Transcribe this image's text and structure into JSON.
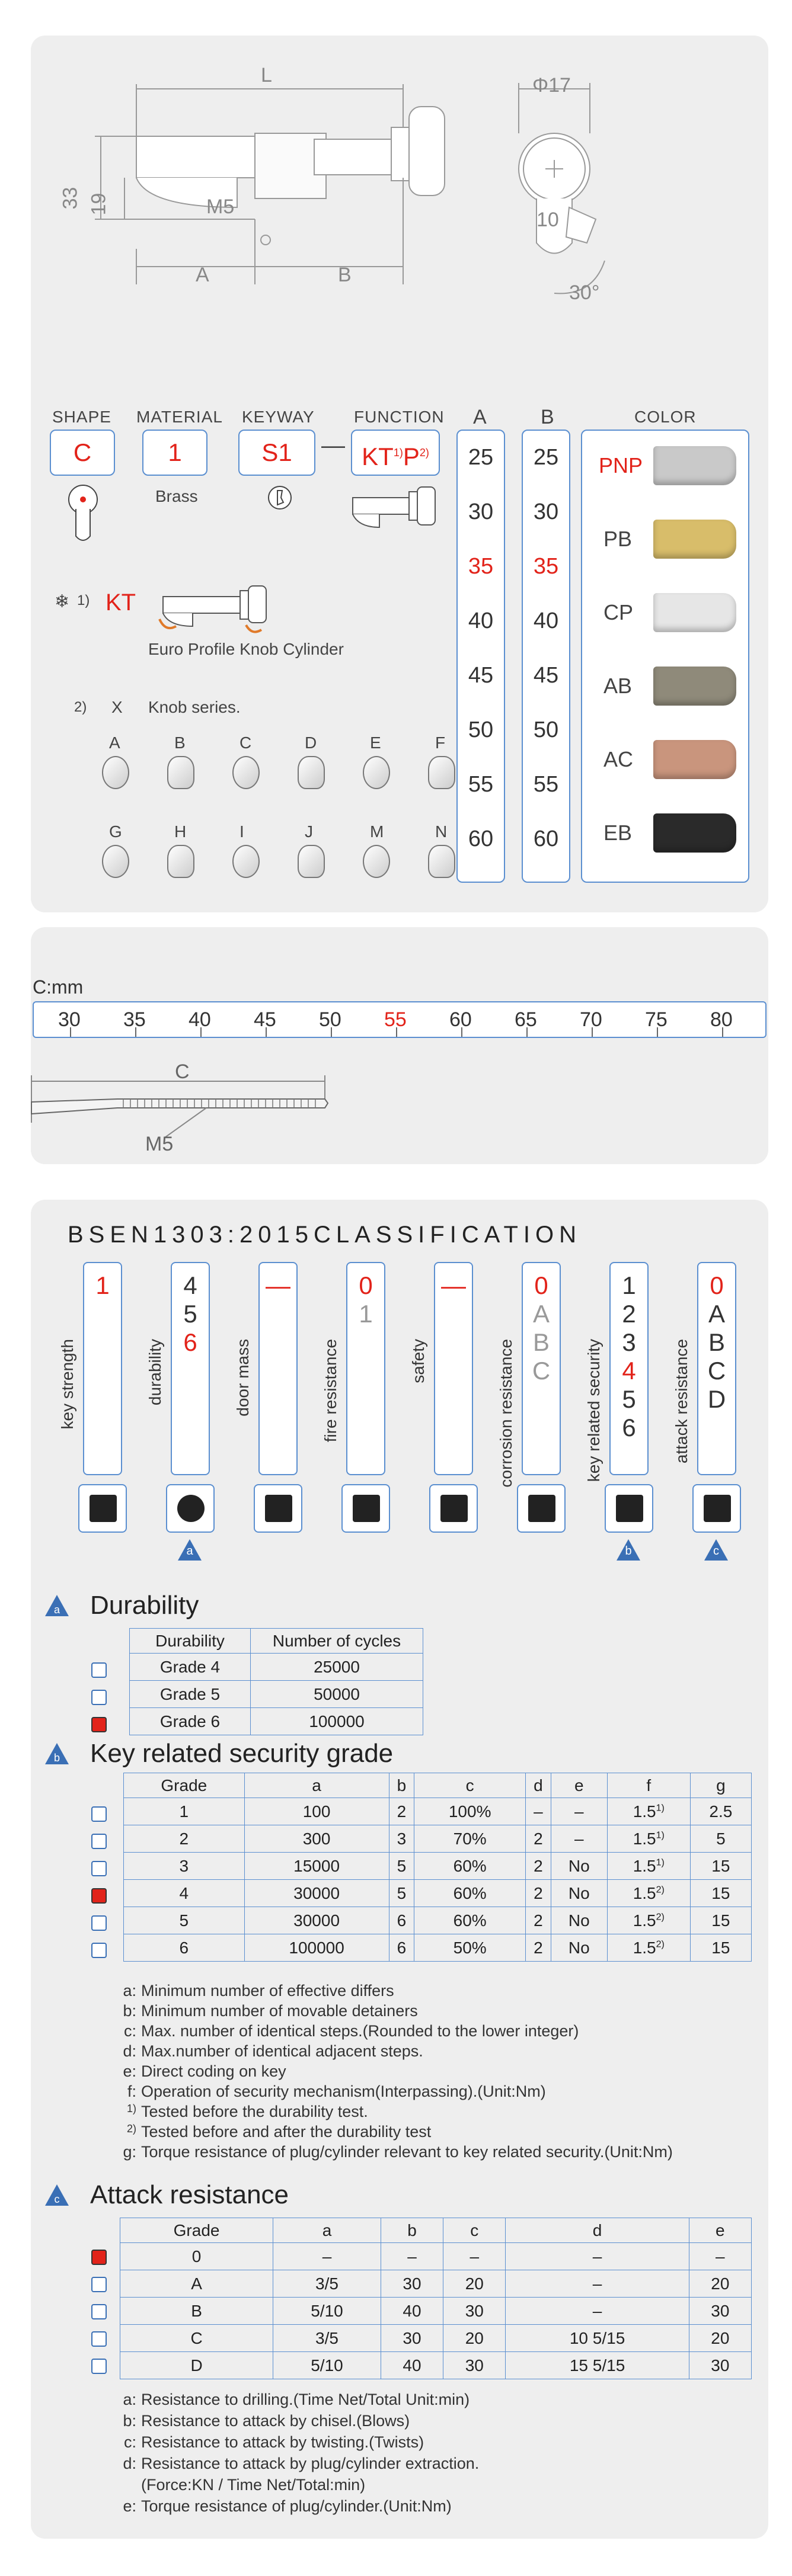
{
  "drawing": {
    "dim_L": "L",
    "dim_phi": "Φ17",
    "dim_33": "33",
    "dim_19": "19",
    "dim_M5": "M5",
    "dim_A": "A",
    "dim_B": "B",
    "dim_10": "10",
    "dim_30deg": "30°"
  },
  "code": {
    "shape_label": "SHAPE",
    "shape_value": "C",
    "material_label": "MATERIAL",
    "material_value": "1",
    "material_note": "Brass",
    "keyway_label": "KEYWAY",
    "keyway_value": "S1",
    "dash": "—",
    "function_label": "FUNCTION",
    "function_value_1": "KT",
    "function_sup_1": "1)",
    "function_value_2": "P",
    "function_sup_2": "2)",
    "col_a_label": "A",
    "col_b_label": "B",
    "color_label": "COLOR",
    "a_values": [
      "25",
      "30",
      "35",
      "40",
      "45",
      "50",
      "55",
      "60"
    ],
    "b_values": [
      "25",
      "30",
      "35",
      "40",
      "45",
      "50",
      "55",
      "60"
    ],
    "highlight_value": "35",
    "colors": [
      {
        "name": "PNP",
        "swatch": "#c9c9c9",
        "highlight": true
      },
      {
        "name": "PB",
        "swatch": "#d8bd6a",
        "highlight": false
      },
      {
        "name": "CP",
        "swatch": "#e6e6e6",
        "highlight": false
      },
      {
        "name": "AB",
        "swatch": "#8f8a7a",
        "highlight": false
      },
      {
        "name": "AC",
        "swatch": "#c9957d",
        "highlight": false
      },
      {
        "name": "EB",
        "swatch": "#2a2a2a",
        "highlight": false
      }
    ],
    "note1_marker": "1)",
    "note1_code": "KT",
    "note1_text": "Euro Profile Knob Cylinder",
    "note2_marker": "2)",
    "note2_x": "X",
    "note2_text": "Knob series.",
    "knobs_row1": [
      "A",
      "B",
      "C",
      "D",
      "E",
      "F"
    ],
    "knobs_row2": [
      "G",
      "H",
      "I",
      "J",
      "M",
      "N"
    ]
  },
  "ruler": {
    "unit_label": "C:mm",
    "values": [
      "30",
      "35",
      "40",
      "45",
      "50",
      "55",
      "60",
      "65",
      "70",
      "75",
      "80"
    ],
    "highlight": "55",
    "screw_label_C": "C",
    "screw_label_M5": "M5"
  },
  "classification": {
    "title": "BSEN1303:2015CLASSIFICATION",
    "columns": [
      {
        "label": "key strength",
        "values": [
          "1"
        ],
        "colors": [
          "red"
        ],
        "badge": ""
      },
      {
        "label": "durability",
        "values": [
          "4",
          "5",
          "6"
        ],
        "colors": [
          "dark",
          "dark",
          "red"
        ],
        "badge": "a"
      },
      {
        "label": "door mass",
        "values": [
          "—"
        ],
        "colors": [
          "red"
        ],
        "badge": ""
      },
      {
        "label": "fire resistance",
        "values": [
          "0",
          "1"
        ],
        "colors": [
          "red",
          "gray"
        ],
        "badge": ""
      },
      {
        "label": "safety",
        "values": [
          "—"
        ],
        "colors": [
          "red"
        ],
        "badge": ""
      },
      {
        "label": "corrosion resistance",
        "values": [
          "0",
          "A",
          "B",
          "C"
        ],
        "colors": [
          "red",
          "gray",
          "gray",
          "gray"
        ],
        "badge": ""
      },
      {
        "label": "key related security",
        "values": [
          "1",
          "2",
          "3",
          "4",
          "5",
          "6"
        ],
        "colors": [
          "dark",
          "dark",
          "dark",
          "red",
          "dark",
          "dark"
        ],
        "badge": "b"
      },
      {
        "label": "attack resistance",
        "values": [
          "0",
          "A",
          "B",
          "C",
          "D"
        ],
        "colors": [
          "red",
          "dark",
          "dark",
          "dark",
          "dark"
        ],
        "badge": "c"
      }
    ],
    "icon_kg": "kg"
  },
  "durability": {
    "badge": "a",
    "title": "Durability",
    "headers": [
      "Durability",
      "Number of cycles"
    ],
    "rows": [
      {
        "grade": "Grade 4",
        "cycles": "25000",
        "checked": false
      },
      {
        "grade": "Grade 5",
        "cycles": "50000",
        "checked": false
      },
      {
        "grade": "Grade 6",
        "cycles": "100000",
        "checked": true
      }
    ]
  },
  "key_security": {
    "badge": "b",
    "title": "Key related security grade",
    "headers": [
      "Grade",
      "a",
      "b",
      "c",
      "d",
      "e",
      "f",
      "g"
    ],
    "rows": [
      {
        "cells": [
          "1",
          "100",
          "2",
          "100%",
          "–",
          "–",
          "1.5",
          "2.5"
        ],
        "f_sup": "1)",
        "checked": false
      },
      {
        "cells": [
          "2",
          "300",
          "3",
          "70%",
          "2",
          "–",
          "1.5",
          "5"
        ],
        "f_sup": "1)",
        "checked": false
      },
      {
        "cells": [
          "3",
          "15000",
          "5",
          "60%",
          "2",
          "No",
          "1.5",
          "15"
        ],
        "f_sup": "1)",
        "checked": false
      },
      {
        "cells": [
          "4",
          "30000",
          "5",
          "60%",
          "2",
          "No",
          "1.5",
          "15"
        ],
        "f_sup": "2)",
        "checked": true
      },
      {
        "cells": [
          "5",
          "30000",
          "6",
          "60%",
          "2",
          "No",
          "1.5",
          "15"
        ],
        "f_sup": "2)",
        "checked": false
      },
      {
        "cells": [
          "6",
          "100000",
          "6",
          "50%",
          "2",
          "No",
          "1.5",
          "15"
        ],
        "f_sup": "2)",
        "checked": false
      }
    ],
    "notes": [
      {
        "k": "a:",
        "t": "Minimum number of effective differs"
      },
      {
        "k": "b:",
        "t": "Minimum number of movable detainers"
      },
      {
        "k": "c:",
        "t": "Max. number of identical steps.(Rounded to the lower integer)"
      },
      {
        "k": "d:",
        "t": "Max.number of identical adjacent steps."
      },
      {
        "k": "e:",
        "t": "Direct coding on key"
      },
      {
        "k": "f:",
        "t": "Operation of security mechanism(Interpassing).(Unit:Nm)"
      },
      {
        "k": "1)",
        "t": "Tested before the durability test."
      },
      {
        "k": "2)",
        "t": "Tested before and after the durability test"
      },
      {
        "k": "g:",
        "t": "Torque resistance of plug/cylinder relevant to key related security.(Unit:Nm)"
      }
    ]
  },
  "attack": {
    "badge": "c",
    "title": "Attack resistance",
    "headers": [
      "Grade",
      "a",
      "b",
      "c",
      "d",
      "e"
    ],
    "rows": [
      {
        "cells": [
          "0",
          "–",
          "–",
          "–",
          "–",
          "–"
        ],
        "checked": true
      },
      {
        "cells": [
          "A",
          "3/5",
          "30",
          "20",
          "–",
          "20"
        ],
        "checked": false
      },
      {
        "cells": [
          "B",
          "5/10",
          "40",
          "30",
          "–",
          "30"
        ],
        "checked": false
      },
      {
        "cells": [
          "C",
          "3/5",
          "30",
          "20",
          "10  5/15",
          "20"
        ],
        "checked": false
      },
      {
        "cells": [
          "D",
          "5/10",
          "40",
          "30",
          "15  5/15",
          "30"
        ],
        "checked": false
      }
    ],
    "notes": [
      {
        "k": "a:",
        "t": "Resistance to drilling.(Time Net/Total Unit:min)"
      },
      {
        "k": "b:",
        "t": "Resistance to attack by chisel.(Blows)"
      },
      {
        "k": "c:",
        "t": "Resistance to attack by twisting.(Twists)"
      },
      {
        "k": "d:",
        "t": "Resistance to attack by plug/cylinder extraction."
      },
      {
        "k": "",
        "t": "(Force:KN  /  Time Net/Total:min)"
      },
      {
        "k": "e:",
        "t": "Torque resistance of plug/cylinder.(Unit:Nm)"
      }
    ]
  }
}
